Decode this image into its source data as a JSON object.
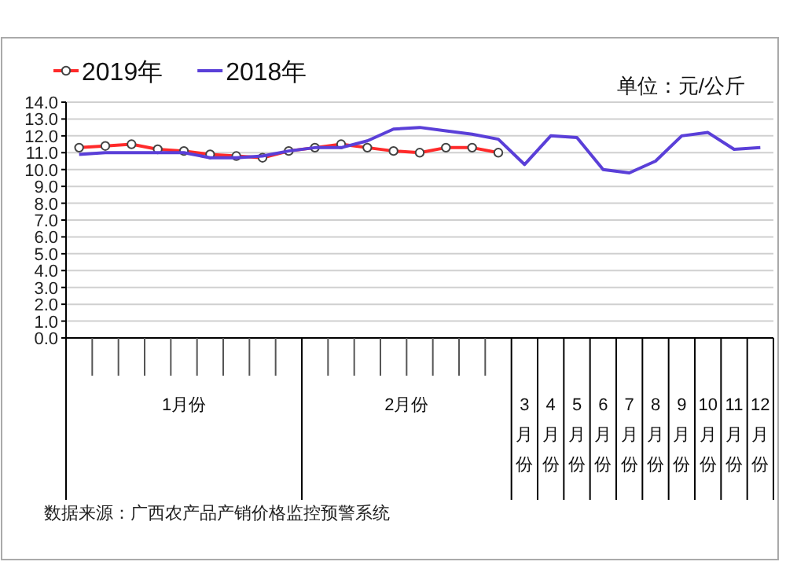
{
  "chart_data": {
    "type": "line",
    "categories": [
      null,
      null,
      null,
      null,
      null,
      null,
      null,
      null,
      null,
      null,
      null,
      null,
      null,
      null,
      null,
      null,
      null,
      "3月份",
      "4月份",
      "5月份",
      "6月份",
      "7月份",
      "8月份",
      "9月份",
      "10月份",
      "11月份",
      "12月份"
    ],
    "series": [
      {
        "name": "2019年",
        "color": "#ff2a2a",
        "marker": "circle",
        "values": [
          11.3,
          11.4,
          11.5,
          11.2,
          11.1,
          10.9,
          10.8,
          10.7,
          11.1,
          11.3,
          11.5,
          11.3,
          11.1,
          11.0,
          11.3,
          11.3,
          11.0,
          null,
          null,
          null,
          null,
          null,
          null,
          null,
          null,
          null,
          null
        ]
      },
      {
        "name": "2018年",
        "color": "#5a3fd8",
        "marker": "none",
        "values": [
          10.9,
          11.0,
          11.0,
          11.0,
          11.0,
          10.7,
          10.7,
          10.8,
          11.1,
          11.3,
          11.3,
          11.7,
          12.4,
          12.5,
          12.3,
          12.1,
          11.8,
          10.3,
          12.0,
          11.9,
          10.0,
          9.8,
          10.5,
          12.0,
          12.2,
          11.2,
          11.3
        ]
      }
    ],
    "ylim": [
      0,
      14
    ],
    "yticks": [
      {
        "value": 0,
        "label": "0.0"
      },
      {
        "value": 1,
        "label": "1.0"
      },
      {
        "value": 2,
        "label": "2.0"
      },
      {
        "value": 3,
        "label": "3.0"
      },
      {
        "value": 4,
        "label": "4.0"
      },
      {
        "value": 5,
        "label": "5.0"
      },
      {
        "value": 6,
        "label": "6.0"
      },
      {
        "value": 7,
        "label": "7.0"
      },
      {
        "value": 8,
        "label": "8.0"
      },
      {
        "value": 9,
        "label": "9.0"
      },
      {
        "value": 10,
        "label": "10.0"
      },
      {
        "value": 11,
        "label": "11.0"
      },
      {
        "value": 12,
        "label": "12.0"
      },
      {
        "value": 13,
        "label": "13.0"
      },
      {
        "value": 14,
        "label": "14.0"
      }
    ],
    "grid": "y",
    "legend": "top left",
    "annotations": [
      "单位：元/公斤",
      "1月份",
      "2月份",
      "数据来源：广西农产品产销价格监控预警系统"
    ]
  }
}
